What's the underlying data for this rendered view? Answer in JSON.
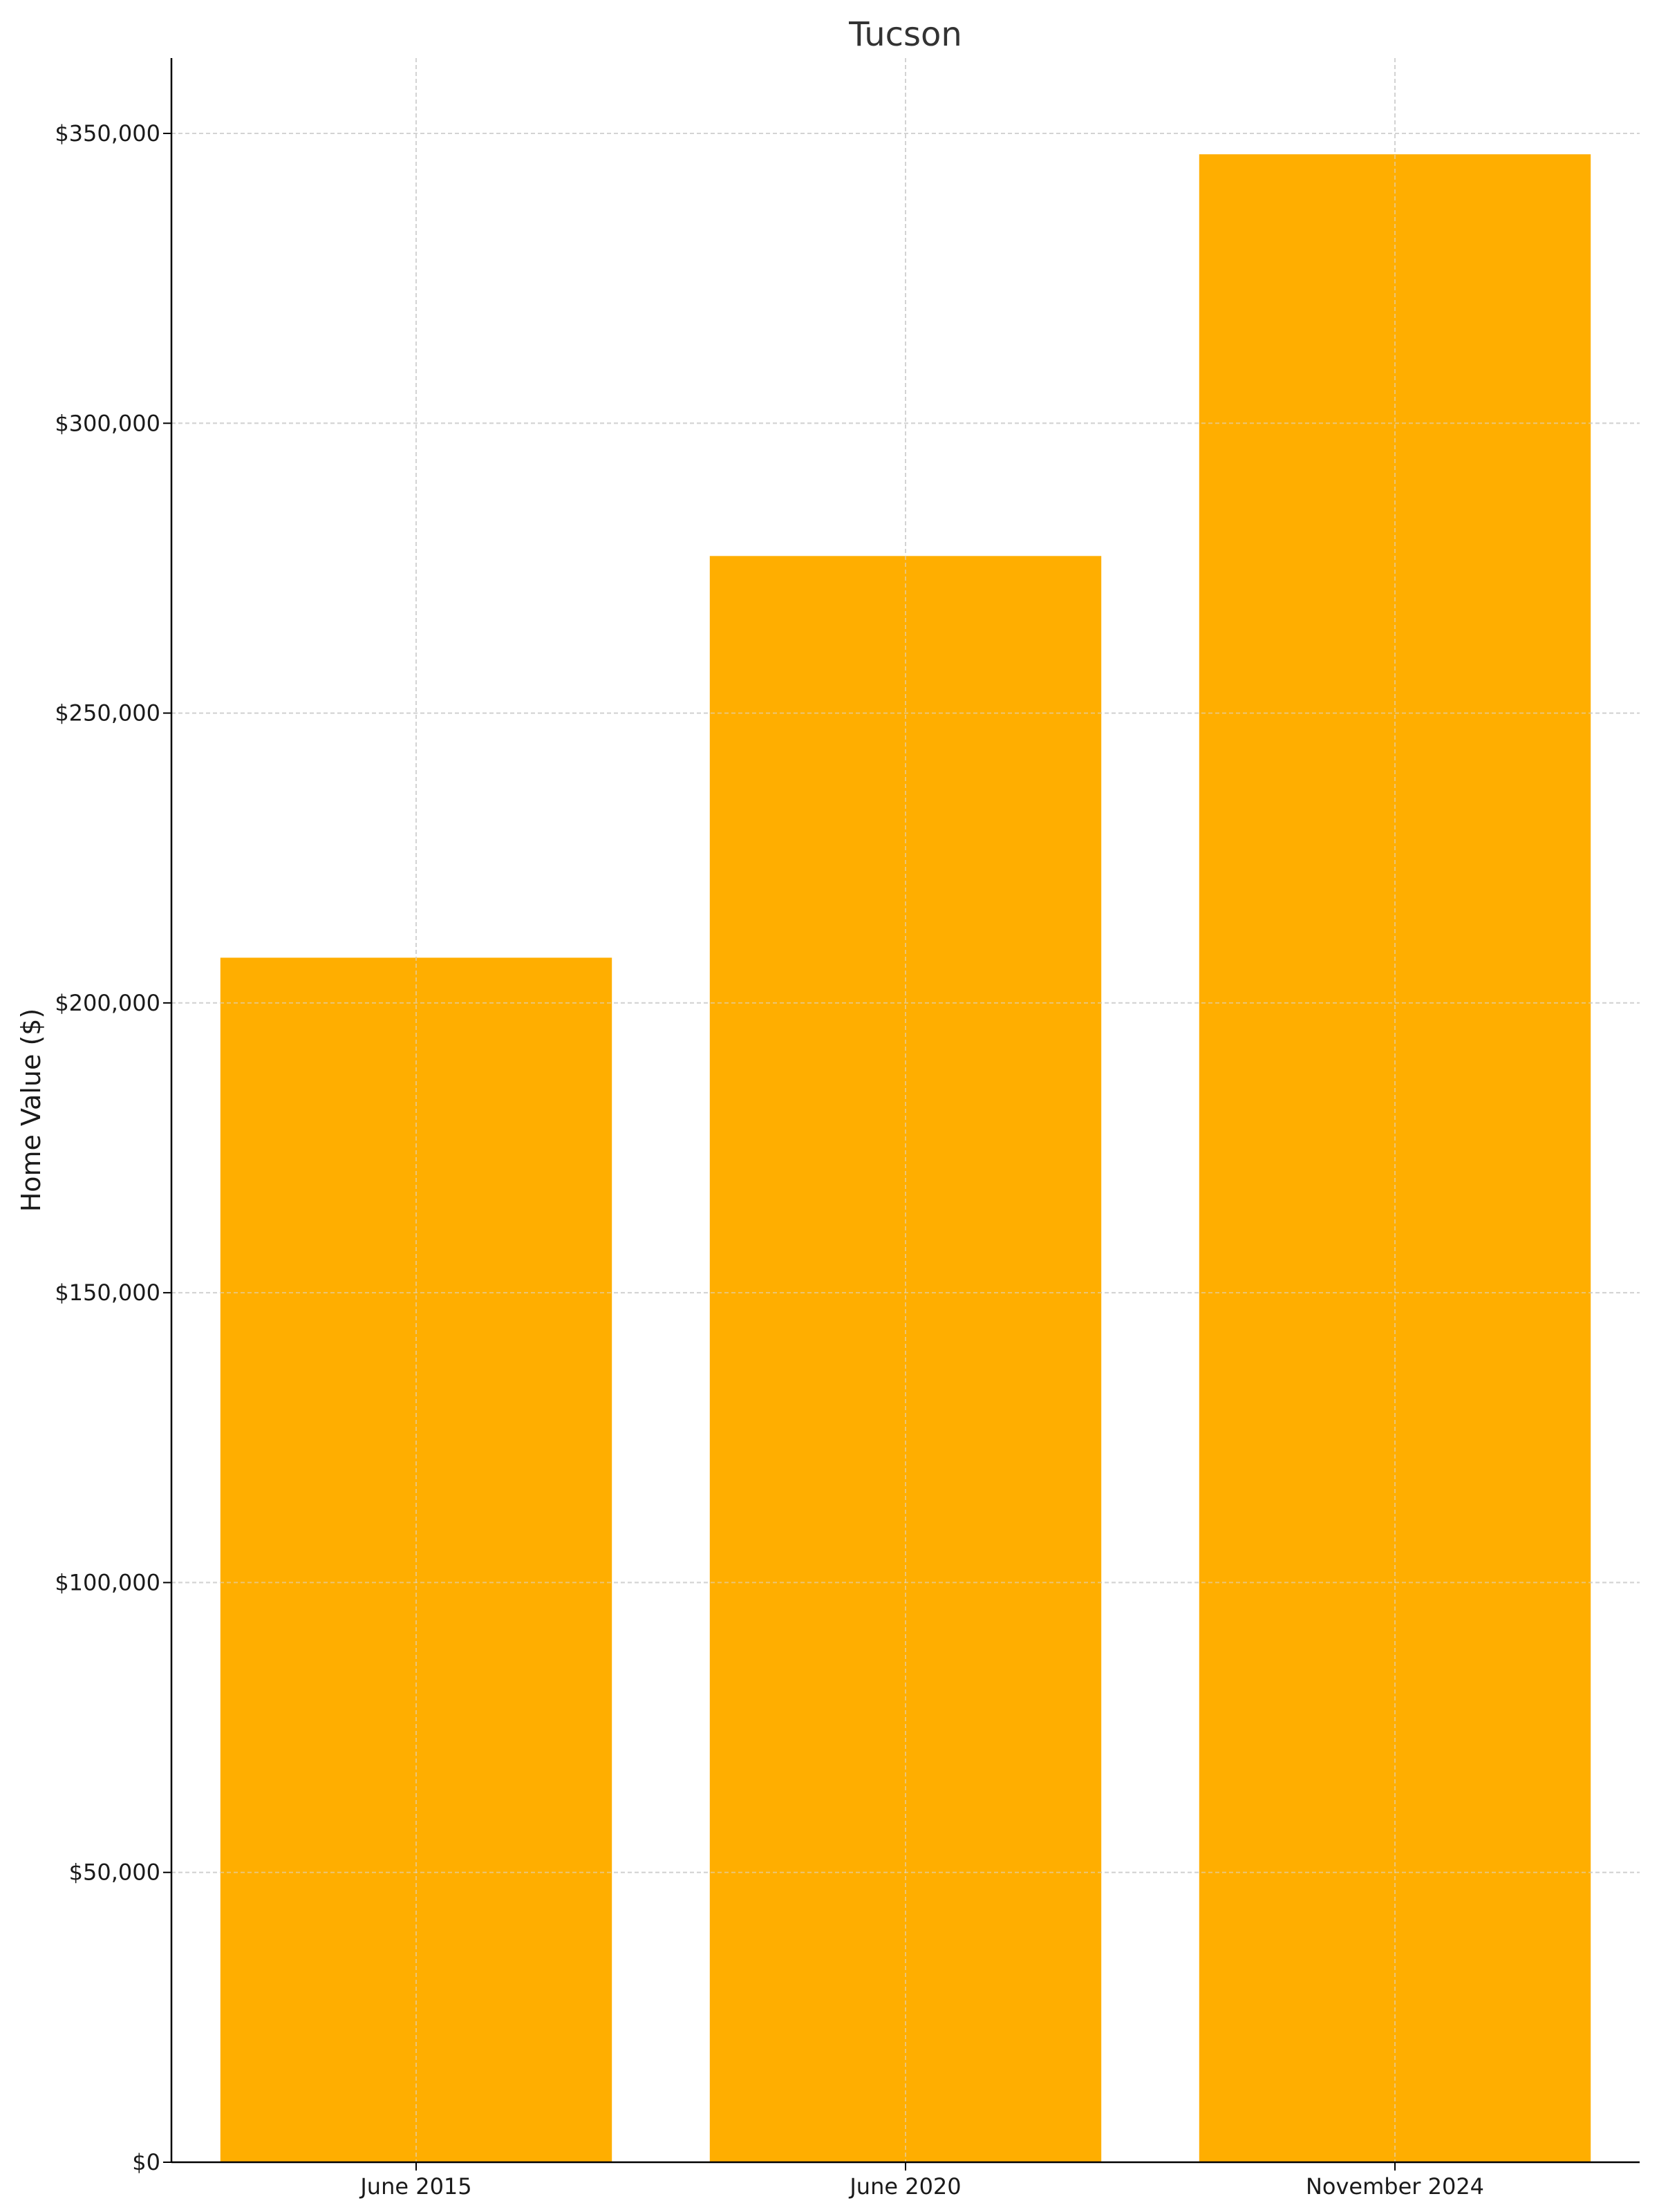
{
  "chart_data": {
    "type": "bar",
    "title": "Tucson",
    "xlabel": "",
    "ylabel": "Home Value ($)",
    "categories": [
      "June 2015",
      "June 2020",
      "November 2024"
    ],
    "values": [
      207800,
      277100,
      346400
    ],
    "ylim": [
      0,
      363000
    ],
    "yticks": [
      0,
      50000,
      100000,
      150000,
      200000,
      250000,
      300000,
      350000
    ],
    "ytick_labels": [
      "$0",
      "$50,000",
      "$100,000",
      "$150,000",
      "$200,000",
      "$250,000",
      "$300,000",
      "$350,000"
    ],
    "grid": true,
    "bar_color": "#FFAE00",
    "grid_color": "#cccccc",
    "axis_color": "#000000"
  }
}
